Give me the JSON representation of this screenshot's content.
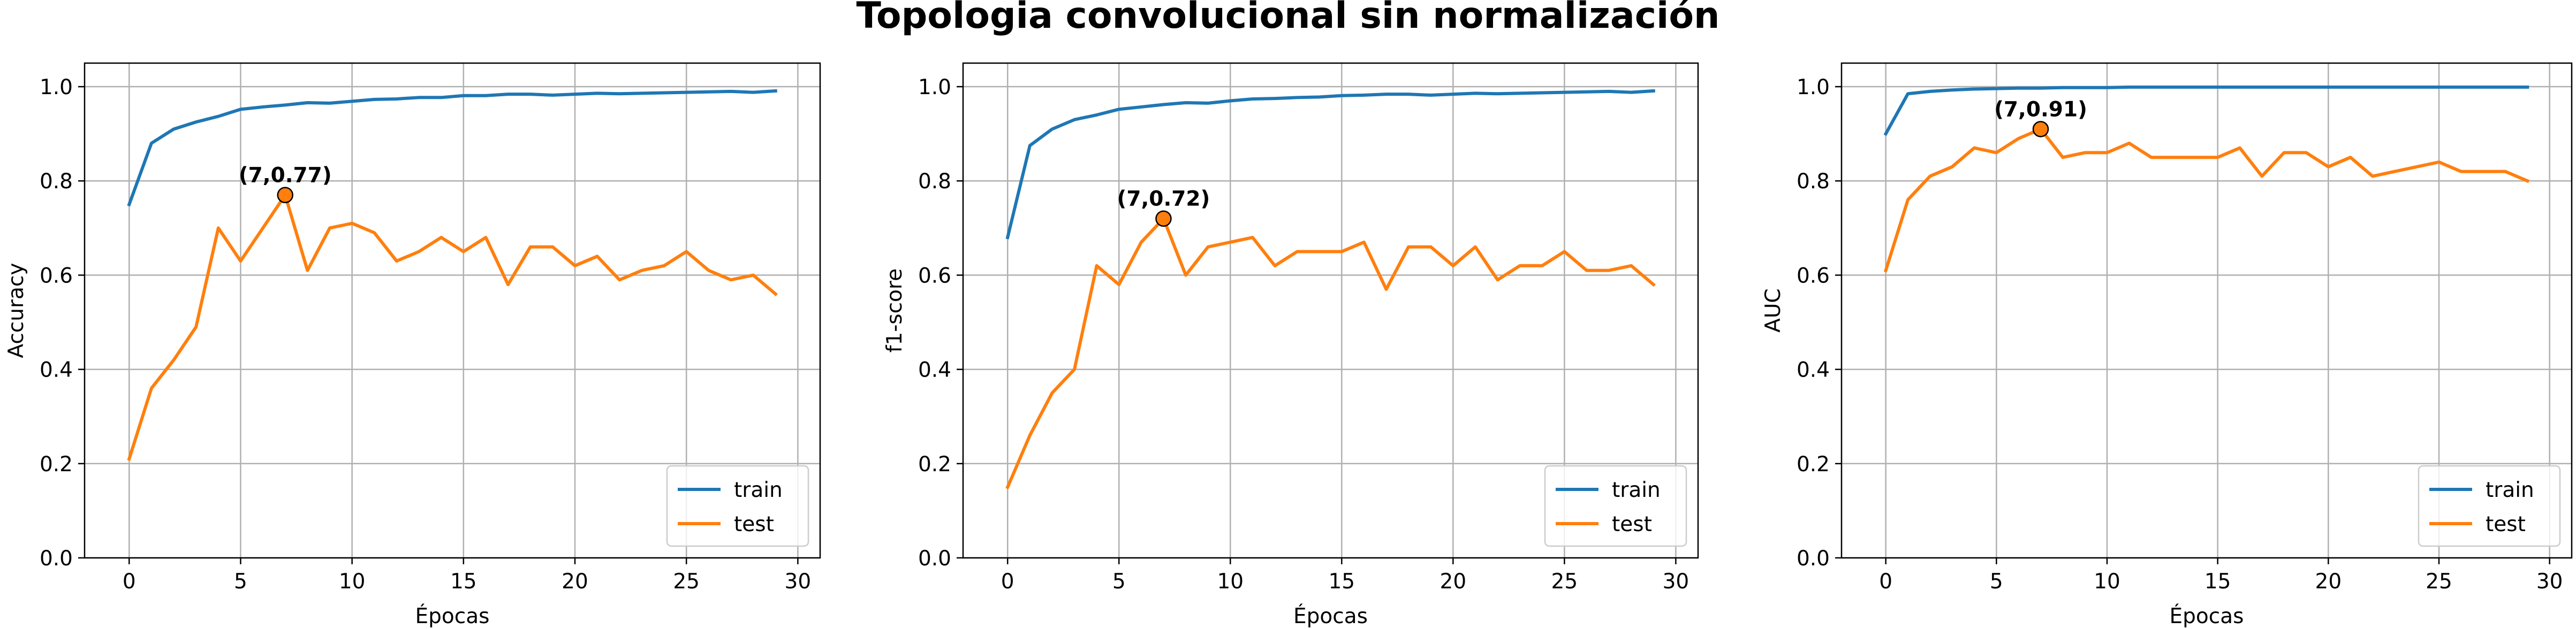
{
  "suptitle": "Topologia convolucional sin normalización",
  "colors": {
    "train": "#1f77b4",
    "test": "#ff7f0e"
  },
  "chart_data": [
    {
      "type": "line",
      "title": "",
      "xlabel": "Épocas",
      "ylabel": "Accuracy",
      "xlim": [
        -2,
        31
      ],
      "ylim": [
        0.0,
        1.05
      ],
      "xticks": [
        0,
        5,
        10,
        15,
        20,
        25,
        30
      ],
      "xtick_labels": [
        "0",
        "5",
        "10",
        "15",
        "20",
        "25",
        "30"
      ],
      "yticks": [
        0.0,
        0.2,
        0.4,
        0.6,
        0.8,
        1.0
      ],
      "ytick_labels": [
        "0.0",
        "0.2",
        "0.4",
        "0.6",
        "0.8",
        "1.0"
      ],
      "grid": true,
      "legend_position": "lower-right",
      "x": [
        0,
        1,
        2,
        3,
        4,
        5,
        6,
        7,
        8,
        9,
        10,
        11,
        12,
        13,
        14,
        15,
        16,
        17,
        18,
        19,
        20,
        21,
        22,
        23,
        24,
        25,
        26,
        27,
        28,
        29
      ],
      "series": [
        {
          "name": "train",
          "color": "#1f77b4",
          "values": [
            0.75,
            0.88,
            0.91,
            0.925,
            0.937,
            0.952,
            0.957,
            0.961,
            0.966,
            0.965,
            0.969,
            0.973,
            0.974,
            0.977,
            0.977,
            0.981,
            0.981,
            0.984,
            0.984,
            0.982,
            0.984,
            0.986,
            0.985,
            0.986,
            0.987,
            0.988,
            0.989,
            0.99,
            0.988,
            0.991
          ]
        },
        {
          "name": "test",
          "color": "#ff7f0e",
          "values": [
            0.21,
            0.36,
            0.42,
            0.49,
            0.7,
            0.63,
            0.7,
            0.77,
            0.61,
            0.7,
            0.71,
            0.69,
            0.63,
            0.65,
            0.68,
            0.65,
            0.68,
            0.58,
            0.66,
            0.66,
            0.62,
            0.64,
            0.59,
            0.61,
            0.62,
            0.65,
            0.61,
            0.59,
            0.6,
            0.56
          ]
        }
      ],
      "annotation": {
        "x": 7,
        "y": 0.77,
        "text": "(7,0.77)"
      }
    },
    {
      "type": "line",
      "title": "",
      "xlabel": "Épocas",
      "ylabel": "f1-score",
      "xlim": [
        -2,
        31
      ],
      "ylim": [
        0.0,
        1.05
      ],
      "xticks": [
        0,
        5,
        10,
        15,
        20,
        25,
        30
      ],
      "xtick_labels": [
        "0",
        "5",
        "10",
        "15",
        "20",
        "25",
        "30"
      ],
      "yticks": [
        0.0,
        0.2,
        0.4,
        0.6,
        0.8,
        1.0
      ],
      "ytick_labels": [
        "0.0",
        "0.2",
        "0.4",
        "0.6",
        "0.8",
        "1.0"
      ],
      "grid": true,
      "legend_position": "lower-right",
      "x": [
        0,
        1,
        2,
        3,
        4,
        5,
        6,
        7,
        8,
        9,
        10,
        11,
        12,
        13,
        14,
        15,
        16,
        17,
        18,
        19,
        20,
        21,
        22,
        23,
        24,
        25,
        26,
        27,
        28,
        29
      ],
      "series": [
        {
          "name": "train",
          "color": "#1f77b4",
          "values": [
            0.68,
            0.875,
            0.91,
            0.93,
            0.94,
            0.952,
            0.957,
            0.962,
            0.966,
            0.965,
            0.97,
            0.974,
            0.975,
            0.977,
            0.978,
            0.981,
            0.982,
            0.984,
            0.984,
            0.982,
            0.984,
            0.986,
            0.985,
            0.986,
            0.987,
            0.988,
            0.989,
            0.99,
            0.988,
            0.991
          ]
        },
        {
          "name": "test",
          "color": "#ff7f0e",
          "values": [
            0.15,
            0.26,
            0.35,
            0.4,
            0.62,
            0.58,
            0.67,
            0.72,
            0.6,
            0.66,
            0.67,
            0.68,
            0.62,
            0.65,
            0.65,
            0.65,
            0.67,
            0.57,
            0.66,
            0.66,
            0.62,
            0.66,
            0.59,
            0.62,
            0.62,
            0.65,
            0.61,
            0.61,
            0.62,
            0.58
          ]
        }
      ],
      "annotation": {
        "x": 7,
        "y": 0.72,
        "text": "(7,0.72)"
      }
    },
    {
      "type": "line",
      "title": "",
      "xlabel": "Épocas",
      "ylabel": "AUC",
      "xlim": [
        -2,
        31
      ],
      "ylim": [
        0.0,
        1.05
      ],
      "xticks": [
        0,
        5,
        10,
        15,
        20,
        25,
        30
      ],
      "xtick_labels": [
        "0",
        "5",
        "10",
        "15",
        "20",
        "25",
        "30"
      ],
      "yticks": [
        0.0,
        0.2,
        0.4,
        0.6,
        0.8,
        1.0
      ],
      "ytick_labels": [
        "0.0",
        "0.2",
        "0.4",
        "0.6",
        "0.8",
        "1.0"
      ],
      "grid": true,
      "legend_position": "lower-right",
      "x": [
        0,
        1,
        2,
        3,
        4,
        5,
        6,
        7,
        8,
        9,
        10,
        11,
        12,
        13,
        14,
        15,
        16,
        17,
        18,
        19,
        20,
        21,
        22,
        23,
        24,
        25,
        26,
        27,
        28,
        29
      ],
      "series": [
        {
          "name": "train",
          "color": "#1f77b4",
          "values": [
            0.9,
            0.985,
            0.99,
            0.993,
            0.995,
            0.996,
            0.997,
            0.997,
            0.998,
            0.998,
            0.998,
            0.999,
            0.999,
            0.999,
            0.999,
            0.999,
            0.999,
            0.999,
            0.999,
            0.999,
            0.999,
            0.999,
            0.999,
            0.999,
            0.999,
            0.999,
            0.999,
            0.999,
            0.999,
            0.999
          ]
        },
        {
          "name": "test",
          "color": "#ff7f0e",
          "values": [
            0.61,
            0.76,
            0.81,
            0.83,
            0.87,
            0.86,
            0.89,
            0.91,
            0.85,
            0.86,
            0.86,
            0.88,
            0.85,
            0.85,
            0.85,
            0.85,
            0.87,
            0.81,
            0.86,
            0.86,
            0.83,
            0.85,
            0.81,
            0.82,
            0.83,
            0.84,
            0.82,
            0.82,
            0.82,
            0.8
          ]
        }
      ],
      "annotation": {
        "x": 7,
        "y": 0.91,
        "text": "(7,0.91)"
      }
    }
  ]
}
